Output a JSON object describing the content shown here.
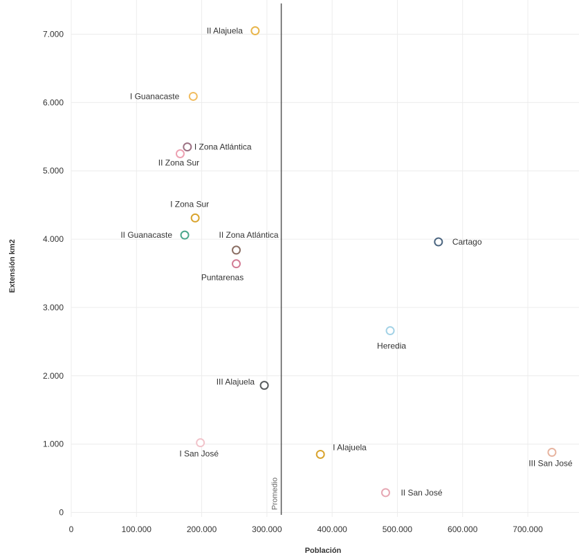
{
  "chart_data": {
    "type": "scatter",
    "xlabel": "Población",
    "ylabel": "Extensión km2",
    "xlim": [
      0,
      740000
    ],
    "ylim": [
      0,
      7200
    ],
    "x_ticks": [
      0,
      100000,
      200000,
      300000,
      400000,
      500000,
      600000,
      700000
    ],
    "x_tick_labels": [
      "0",
      "100.000",
      "200.000",
      "300.000",
      "400.000",
      "500.000",
      "600.000",
      "700.000"
    ],
    "y_ticks": [
      0,
      1000,
      2000,
      3000,
      4000,
      5000,
      6000,
      7000
    ],
    "y_tick_labels": [
      "0",
      "1.000",
      "2.000",
      "3.000",
      "4.000",
      "5.000",
      "6.000",
      "7.000"
    ],
    "grid": true,
    "reference_line": {
      "label": "Promedio",
      "x": 322000
    },
    "points": [
      {
        "label": "II Alajuela",
        "x": 282000,
        "y": 7050,
        "color": "#e8b54a"
      },
      {
        "label": "I Guanacaste",
        "x": 187000,
        "y": 6090,
        "color": "#f1bd61"
      },
      {
        "label": "I Zona Atlántica",
        "x": 178000,
        "y": 5350,
        "color": "#9b7082"
      },
      {
        "label": "II Zona Sur",
        "x": 167000,
        "y": 5250,
        "color": "#eda1b2"
      },
      {
        "label": "I Zona Sur",
        "x": 190000,
        "y": 4310,
        "color": "#d9a42e"
      },
      {
        "label": "II Guanacaste",
        "x": 174000,
        "y": 4060,
        "color": "#4aa68b"
      },
      {
        "label": "II Zona Atlántica",
        "x": 253000,
        "y": 3840,
        "color": "#8a6e63"
      },
      {
        "label": "Puntarenas",
        "x": 253000,
        "y": 3640,
        "color": "#d27b94"
      },
      {
        "label": "Cartago",
        "x": 563000,
        "y": 3960,
        "color": "#4b6580"
      },
      {
        "label": "Heredia",
        "x": 489000,
        "y": 2660,
        "color": "#a3d2e6"
      },
      {
        "label": "III Alajuela",
        "x": 296000,
        "y": 1860,
        "color": "#585c5e"
      },
      {
        "label": "I San José",
        "x": 198000,
        "y": 1020,
        "color": "#f1c3ca"
      },
      {
        "label": "I Alajuela",
        "x": 382000,
        "y": 850,
        "color": "#d9a42e"
      },
      {
        "label": "II San José",
        "x": 482000,
        "y": 290,
        "color": "#e6a7b3"
      },
      {
        "label": "III San José",
        "x": 737000,
        "y": 880,
        "color": "#e7b4a0"
      }
    ]
  }
}
